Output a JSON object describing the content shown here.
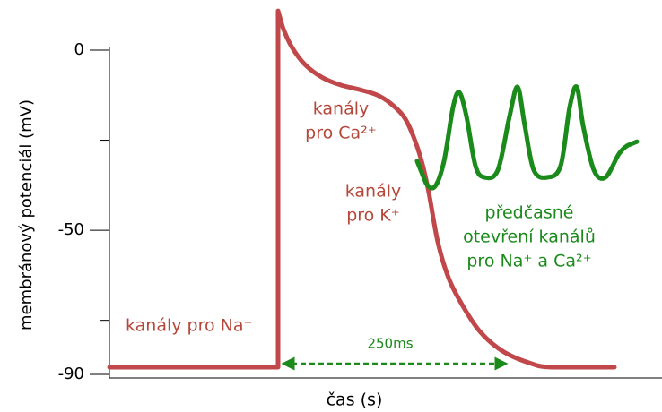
{
  "chart_data": {
    "type": "line",
    "ylabel": "membránový potenciál (mV)",
    "xlabel": "čas (s)",
    "ylim": [
      -90,
      0
    ],
    "yticks": [
      0,
      -50,
      -90
    ],
    "minor_yticks": [
      -25,
      -75
    ],
    "xlim": [
      0,
      616
    ],
    "series": [
      {
        "color": "#c0474a",
        "x": [
          0,
          188,
          188,
          193,
          203,
          218,
          238,
          258,
          278,
          298,
          313,
          328,
          338,
          348,
          356,
          366,
          378,
          393,
          413,
          438,
          468,
          493,
          563
        ],
        "values": [
          -88,
          -88,
          10.9,
          6.5,
          1.0,
          -4.0,
          -7.7,
          -9.7,
          -10.9,
          -12.4,
          -14.7,
          -18.4,
          -23.4,
          -30.8,
          -39.5,
          -53.2,
          -63.2,
          -70.6,
          -78.1,
          -83.5,
          -86.8,
          -88,
          -88
        ]
      },
      {
        "color": "#1a8a1a",
        "x": [
          343,
          353,
          363,
          373,
          383,
          390,
          398,
          408,
          418,
          433,
          446,
          455,
          463,
          473,
          488,
          503,
          513,
          521,
          528,
          540,
          553,
          568,
          578,
          588
        ],
        "values": [
          -30.8,
          -37.0,
          -37.8,
          -30.8,
          -15.9,
          -11.7,
          -18.4,
          -32.1,
          -35.3,
          -33.3,
          -18.4,
          -10.2,
          -20.9,
          -33.3,
          -35.3,
          -32.1,
          -15.9,
          -10.2,
          -20.9,
          -33.3,
          -35.3,
          -28.8,
          -26.4,
          -25.4
        ]
      }
    ],
    "annotations": [
      {
        "lines": [
          "kanály pro Na⁺"
        ],
        "color": "#b5473a"
      },
      {
        "lines": [
          "kanály",
          "pro Ca²⁺"
        ],
        "color": "#b5473a"
      },
      {
        "lines": [
          "kanály",
          "pro K⁺"
        ],
        "color": "#b5473a"
      },
      {
        "lines": [
          "předčasné",
          "otevření kanálů",
          "pro Na⁺ a Ca²⁺"
        ],
        "color": "#1a8a1a"
      }
    ],
    "span": {
      "label": "250ms",
      "value": 250,
      "color": "#1a8a1a"
    }
  }
}
